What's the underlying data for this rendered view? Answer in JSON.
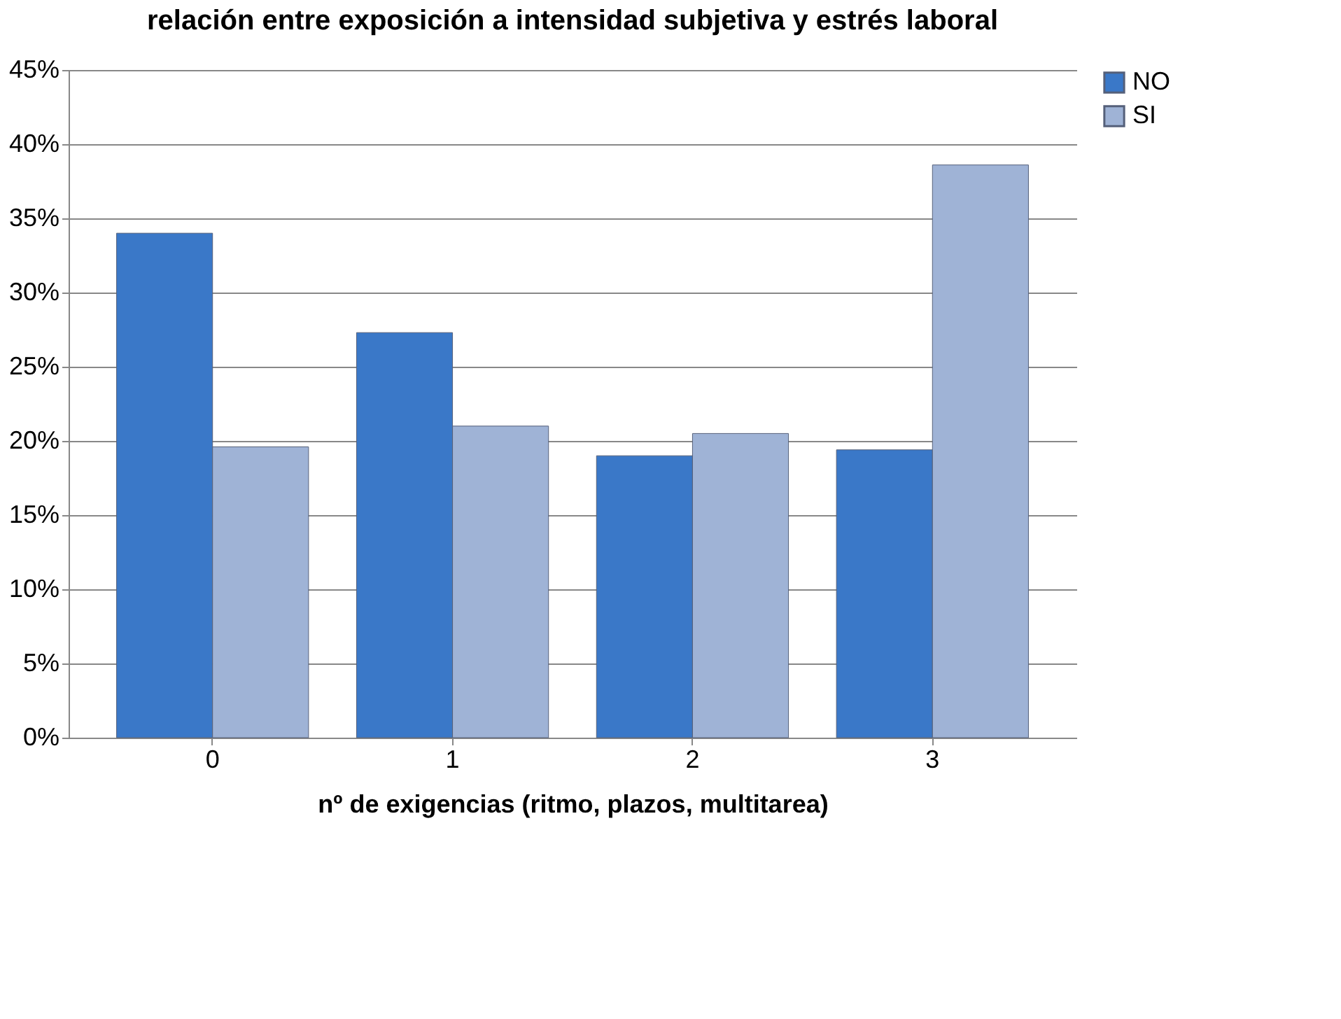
{
  "chart_data": {
    "type": "bar",
    "title": "relación entre exposición a intensidad subjetiva y estrés laboral",
    "xlabel": "nº de exigencias (ritmo, plazos, multitarea)",
    "categories": [
      "0",
      "1",
      "2",
      "3"
    ],
    "series": [
      {
        "name": "NO",
        "color": "#3a78c8",
        "values": [
          34.0,
          27.3,
          19.0,
          19.4
        ]
      },
      {
        "name": "SI",
        "color": "#9fb3d6",
        "values": [
          19.6,
          21.0,
          20.5,
          38.6
        ]
      }
    ],
    "ylim": [
      0,
      45
    ],
    "yticks": [
      {
        "value": 0,
        "label": "0%"
      },
      {
        "value": 5,
        "label": "5%"
      },
      {
        "value": 10,
        "label": "10%"
      },
      {
        "value": 15,
        "label": "15%"
      },
      {
        "value": 20,
        "label": "20%"
      },
      {
        "value": 25,
        "label": "25%"
      },
      {
        "value": 30,
        "label": "30%"
      },
      {
        "value": 35,
        "label": "35%"
      },
      {
        "value": 40,
        "label": "40%"
      },
      {
        "value": 45,
        "label": "45%"
      }
    ],
    "grid": "y",
    "legend": "right"
  }
}
